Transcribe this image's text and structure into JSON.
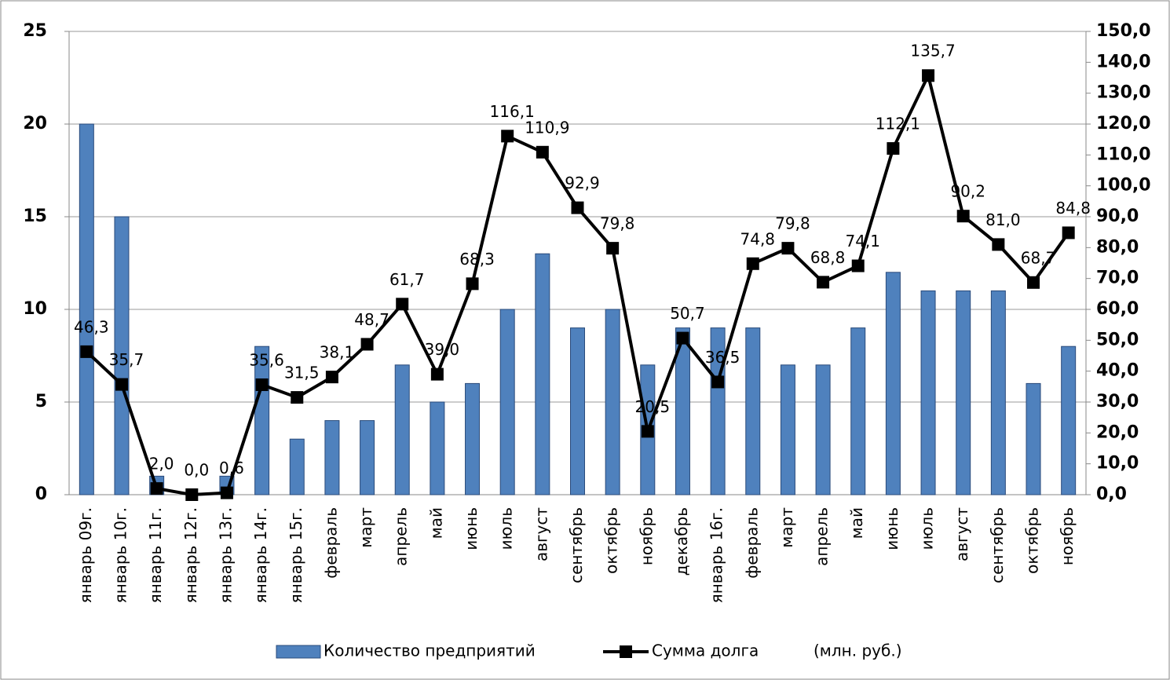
{
  "chart_data": {
    "type": "bar_line",
    "categories": [
      "январь 09г.",
      "январь 10г.",
      "январь 11г.",
      "январь 12г.",
      "январь 13г.",
      "январь 14г.",
      "январь 15г.",
      "февраль",
      "март",
      "апрель",
      "май",
      "июнь",
      "июль",
      "август",
      "сентябрь",
      "октябрь",
      "ноябрь",
      "декабрь",
      "январь 16г.",
      "февраль",
      "март",
      "апрель",
      "май",
      "июнь",
      "июль",
      "август",
      "сентябрь",
      "октябрь",
      "ноябрь"
    ],
    "series": [
      {
        "name": "Количество предприятий",
        "type": "bar",
        "color": "#4f81bd",
        "axis": "y",
        "values": [
          20,
          15,
          1,
          0,
          1,
          8,
          3,
          4,
          4,
          7,
          5,
          6,
          10,
          13,
          9,
          10,
          7,
          9,
          9,
          9,
          7,
          7,
          9,
          12,
          11,
          11,
          11,
          6,
          8
        ]
      },
      {
        "name": "Сумма долга",
        "type": "line",
        "color": "#000000",
        "axis": "y2",
        "values": [
          46.3,
          35.7,
          2.0,
          0.0,
          0.6,
          35.6,
          31.5,
          38.1,
          48.7,
          61.7,
          39.0,
          68.3,
          116.1,
          110.9,
          92.9,
          79.8,
          20.5,
          50.7,
          36.5,
          74.8,
          79.8,
          68.8,
          74.1,
          112.1,
          135.7,
          90.2,
          81.0,
          68.7,
          84.8
        ],
        "value_labels": [
          "46,3",
          "35,7",
          "2,0",
          "0,0",
          "0,6",
          "35,6",
          "31,5",
          "38,1",
          "48,7",
          "61,7",
          "39,0",
          "68,3",
          "116,1",
          "110,9",
          "92,9",
          "79,8",
          "20,5",
          "50,7",
          "36,5",
          "74,8",
          "79,8",
          "68,8",
          "74,1",
          "112,1",
          "135,7",
          "90,2",
          "81,0",
          "68,7",
          "84,8"
        ]
      }
    ],
    "legend_note": "(млн. руб.)",
    "ylim": [
      0,
      25
    ],
    "yticks": [
      0,
      5,
      10,
      15,
      20,
      25
    ],
    "y2lim": [
      0,
      150
    ],
    "y2ticks": [
      {
        "value": 0,
        "label": "0,0"
      },
      {
        "value": 10,
        "label": "10,0"
      },
      {
        "value": 20,
        "label": "20,0"
      },
      {
        "value": 30,
        "label": "30,0"
      },
      {
        "value": 40,
        "label": "40,0"
      },
      {
        "value": 50,
        "label": "50,0"
      },
      {
        "value": 60,
        "label": "60,0"
      },
      {
        "value": 70,
        "label": "70,0"
      },
      {
        "value": 80,
        "label": "80,0"
      },
      {
        "value": 90,
        "label": "90,0"
      },
      {
        "value": 100,
        "label": "100,0"
      },
      {
        "value": 110,
        "label": "110,0"
      },
      {
        "value": 120,
        "label": "120,0"
      },
      {
        "value": 130,
        "label": "130,0"
      },
      {
        "value": 140,
        "label": "140,0"
      },
      {
        "value": 150,
        "label": "150,0"
      }
    ],
    "grid": true
  }
}
